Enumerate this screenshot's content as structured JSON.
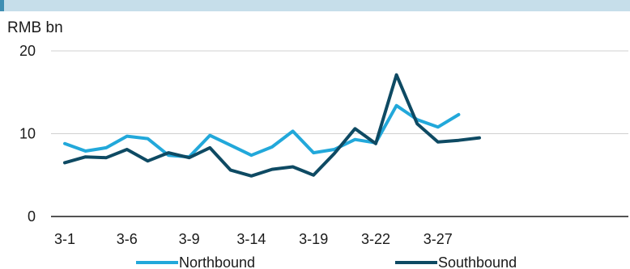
{
  "chart_data": {
    "type": "line",
    "unit_label": "RMB bn",
    "x_tick_labels": [
      "3-1",
      "3-6",
      "3-9",
      "3-14",
      "3-19",
      "3-22",
      "3-27"
    ],
    "x": [
      0,
      1,
      2,
      3,
      4,
      5,
      6,
      7,
      8,
      9,
      10,
      11,
      12,
      13,
      14,
      15,
      16,
      17,
      18,
      19,
      20,
      21,
      22
    ],
    "ylim": [
      0,
      20
    ],
    "y_ticks": [
      0,
      10,
      20
    ],
    "grid": true,
    "legend_position": "bottom",
    "series": [
      {
        "name": "Northbound",
        "color": "#22a8da",
        "values": [
          8.8,
          7.9,
          8.3,
          9.7,
          9.4,
          7.4,
          7.2,
          9.8,
          8.6,
          7.4,
          8.4,
          10.3,
          7.7,
          8.1,
          9.3,
          8.9,
          13.4,
          11.7,
          10.8,
          12.3,
          null,
          null,
          null
        ]
      },
      {
        "name": "Southbound",
        "color": "#0e4a63",
        "values": [
          6.5,
          7.2,
          7.1,
          8.1,
          6.7,
          7.7,
          7.1,
          8.3,
          5.6,
          4.9,
          5.7,
          6.0,
          5.0,
          7.6,
          10.6,
          8.8,
          17.1,
          11.2,
          9.0,
          9.2,
          9.5,
          null,
          null
        ]
      }
    ]
  }
}
